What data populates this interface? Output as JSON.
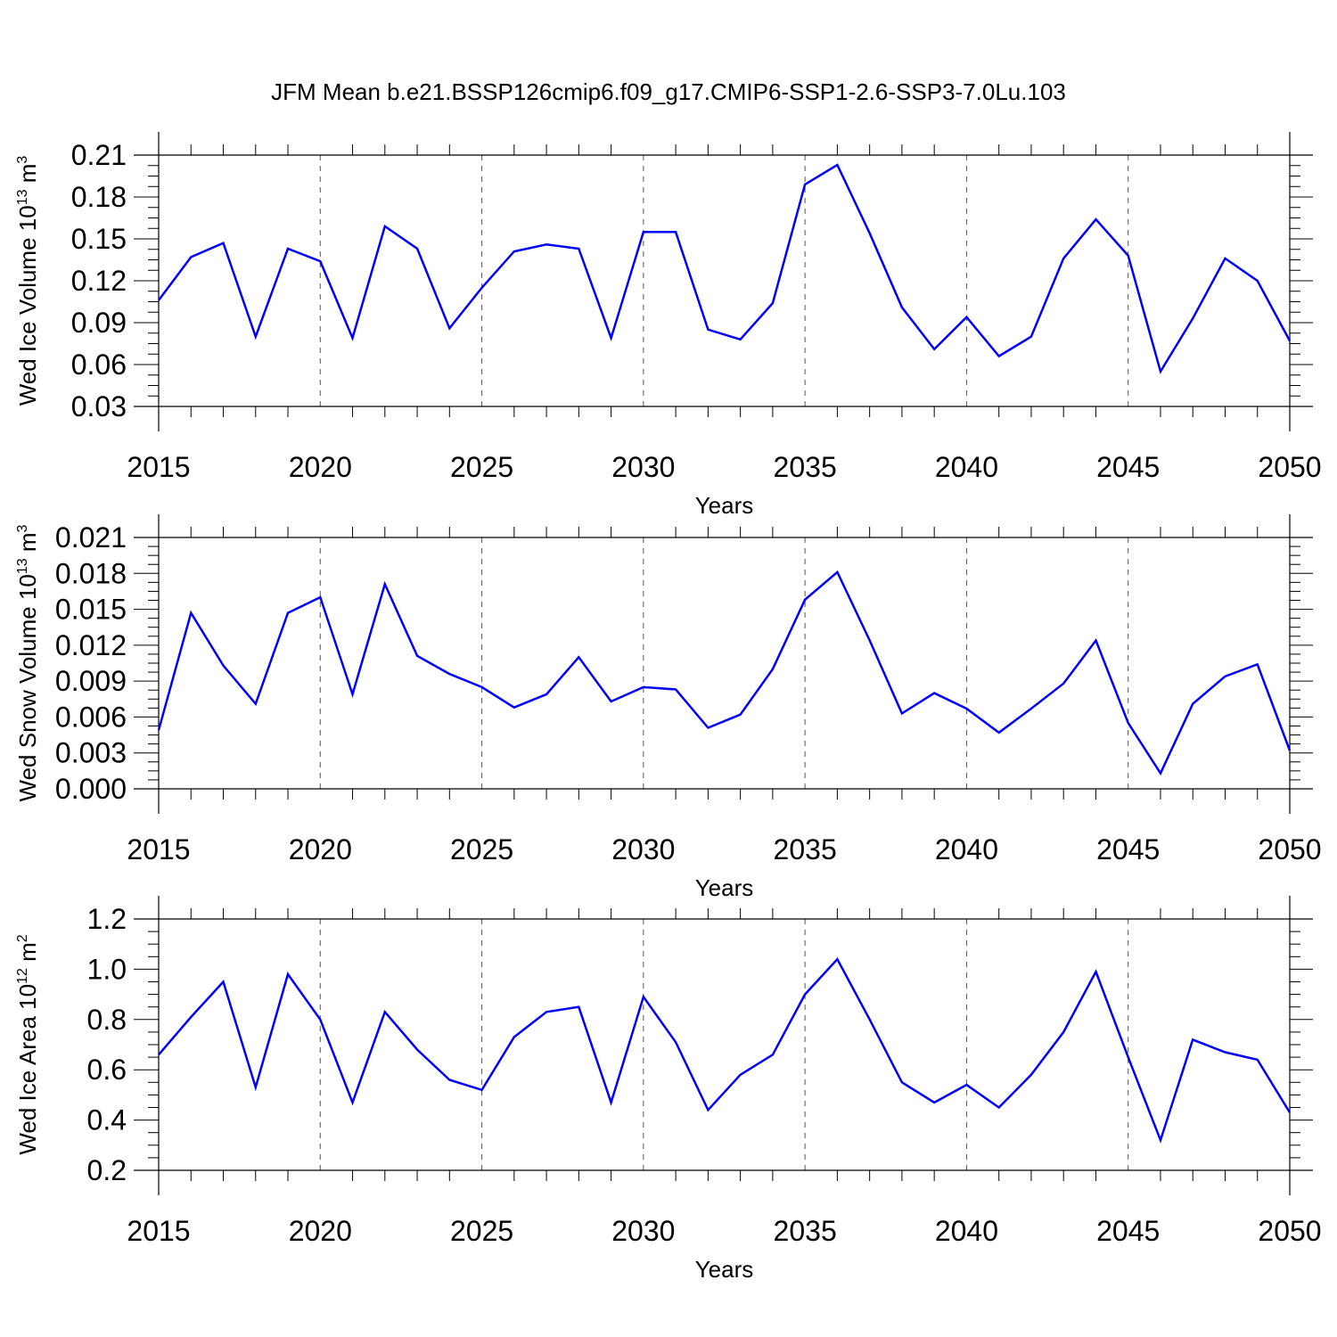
{
  "title": "JFM Mean b.e21.BSSP126cmip6.f09_g17.CMIP6-SSP1-2.6-SSP3-7.0Lu.103",
  "series_color": "#0000ff",
  "chart_data": [
    {
      "type": "line",
      "xlabel": "Years",
      "ylabel_main": "Wed Ice Volume 10",
      "ylabel_sup": "13",
      "ylabel_unit": "m",
      "ylabel_unit_sup": "3",
      "xlim": [
        2015,
        2050
      ],
      "ylim": [
        0.03,
        0.21
      ],
      "xticks": [
        2015,
        2020,
        2025,
        2030,
        2035,
        2040,
        2045,
        2050
      ],
      "xtick_labels": [
        "2015",
        "2020",
        "2025",
        "2030",
        "2035",
        "2040",
        "2045",
        "2050"
      ],
      "yticks": [
        0.03,
        0.06,
        0.09,
        0.12,
        0.15,
        0.18,
        0.21
      ],
      "ytick_labels": [
        "0.03",
        "0.06",
        "0.09",
        "0.12",
        "0.15",
        "0.18",
        "0.21"
      ],
      "y_minor_step": 0.0075,
      "grid": "vertical dashed at major x ticks",
      "x": [
        2015,
        2016,
        2017,
        2018,
        2019,
        2020,
        2021,
        2022,
        2023,
        2024,
        2025,
        2026,
        2027,
        2028,
        2029,
        2030,
        2031,
        2032,
        2033,
        2034,
        2035,
        2036,
        2037,
        2038,
        2039,
        2040,
        2041,
        2042,
        2043,
        2044,
        2045,
        2046,
        2047,
        2048,
        2049,
        2050
      ],
      "y": [
        0.106,
        0.137,
        0.147,
        0.08,
        0.143,
        0.134,
        0.079,
        0.159,
        0.143,
        0.086,
        0.115,
        0.141,
        0.146,
        0.143,
        0.079,
        0.155,
        0.155,
        0.085,
        0.078,
        0.104,
        0.189,
        0.203,
        0.154,
        0.101,
        0.071,
        0.094,
        0.066,
        0.08,
        0.136,
        0.164,
        0.138,
        0.055,
        0.093,
        0.136,
        0.12,
        0.077
      ]
    },
    {
      "type": "line",
      "xlabel": "Years",
      "ylabel_main": "Wed Snow Volume 10",
      "ylabel_sup": "13",
      "ylabel_unit": "m",
      "ylabel_unit_sup": "3",
      "xlim": [
        2015,
        2050
      ],
      "ylim": [
        0.0,
        0.021
      ],
      "xticks": [
        2015,
        2020,
        2025,
        2030,
        2035,
        2040,
        2045,
        2050
      ],
      "xtick_labels": [
        "2015",
        "2020",
        "2025",
        "2030",
        "2035",
        "2040",
        "2045",
        "2050"
      ],
      "yticks": [
        0.0,
        0.003,
        0.006,
        0.009,
        0.012,
        0.015,
        0.018,
        0.021
      ],
      "ytick_labels": [
        "0.000",
        "0.003",
        "0.006",
        "0.009",
        "0.012",
        "0.015",
        "0.018",
        "0.021"
      ],
      "y_minor_step": 0.00075,
      "grid": "vertical dashed at major x ticks",
      "x": [
        2015,
        2016,
        2017,
        2018,
        2019,
        2020,
        2021,
        2022,
        2023,
        2024,
        2025,
        2026,
        2027,
        2028,
        2029,
        2030,
        2031,
        2032,
        2033,
        2034,
        2035,
        2036,
        2037,
        2038,
        2039,
        2040,
        2041,
        2042,
        2043,
        2044,
        2045,
        2046,
        2047,
        2048,
        2049,
        2050
      ],
      "y": [
        0.0049,
        0.0147,
        0.0103,
        0.0071,
        0.0147,
        0.016,
        0.0079,
        0.0171,
        0.0111,
        0.0096,
        0.0085,
        0.0068,
        0.0079,
        0.011,
        0.0073,
        0.0085,
        0.0083,
        0.0051,
        0.0062,
        0.01,
        0.0158,
        0.0181,
        0.0124,
        0.0063,
        0.008,
        0.0067,
        0.0047,
        0.0067,
        0.0088,
        0.0124,
        0.0055,
        0.0013,
        0.0071,
        0.0094,
        0.0104,
        0.0032
      ]
    },
    {
      "type": "line",
      "xlabel": "Years",
      "ylabel_main": "Wed Ice Area 10",
      "ylabel_sup": "12",
      "ylabel_unit": "m",
      "ylabel_unit_sup": "2",
      "xlim": [
        2015,
        2050
      ],
      "ylim": [
        0.2,
        1.2
      ],
      "xticks": [
        2015,
        2020,
        2025,
        2030,
        2035,
        2040,
        2045,
        2050
      ],
      "xtick_labels": [
        "2015",
        "2020",
        "2025",
        "2030",
        "2035",
        "2040",
        "2045",
        "2050"
      ],
      "yticks": [
        0.2,
        0.4,
        0.6,
        0.8,
        1.0,
        1.2
      ],
      "ytick_labels": [
        "0.2",
        "0.4",
        "0.6",
        "0.8",
        "1.0",
        "1.2"
      ],
      "y_minor_step": 0.05,
      "grid": "vertical dashed at major x ticks",
      "x": [
        2015,
        2016,
        2017,
        2018,
        2019,
        2020,
        2021,
        2022,
        2023,
        2024,
        2025,
        2026,
        2027,
        2028,
        2029,
        2030,
        2031,
        2032,
        2033,
        2034,
        2035,
        2036,
        2037,
        2038,
        2039,
        2040,
        2041,
        2042,
        2043,
        2044,
        2045,
        2046,
        2047,
        2048,
        2049,
        2050
      ],
      "y": [
        0.66,
        0.81,
        0.95,
        0.53,
        0.98,
        0.8,
        0.47,
        0.83,
        0.68,
        0.56,
        0.52,
        0.73,
        0.83,
        0.85,
        0.47,
        0.89,
        0.71,
        0.44,
        0.58,
        0.66,
        0.9,
        1.04,
        0.8,
        0.55,
        0.47,
        0.54,
        0.45,
        0.58,
        0.75,
        0.99,
        0.65,
        0.32,
        0.72,
        0.67,
        0.64,
        0.43
      ]
    }
  ]
}
